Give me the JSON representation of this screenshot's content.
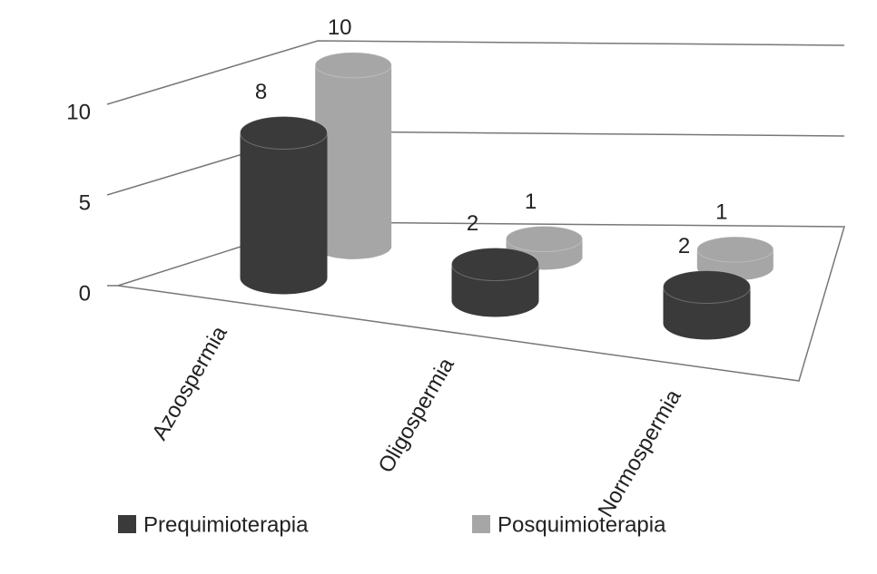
{
  "chart_data": {
    "type": "bar3d",
    "categories": [
      "Azoospermia",
      "Oligospermia",
      "Normospermia"
    ],
    "series": [
      {
        "name": "Prequimioterapia",
        "color": "#3a3a3a",
        "values": [
          8,
          2,
          2
        ]
      },
      {
        "name": "Posquimioterapia",
        "color": "#a6a6a6",
        "values": [
          10,
          1,
          1
        ]
      }
    ],
    "ylim": [
      0,
      10
    ],
    "yticks": [
      0,
      5,
      10
    ],
    "grid": true,
    "legend": "bottom"
  }
}
